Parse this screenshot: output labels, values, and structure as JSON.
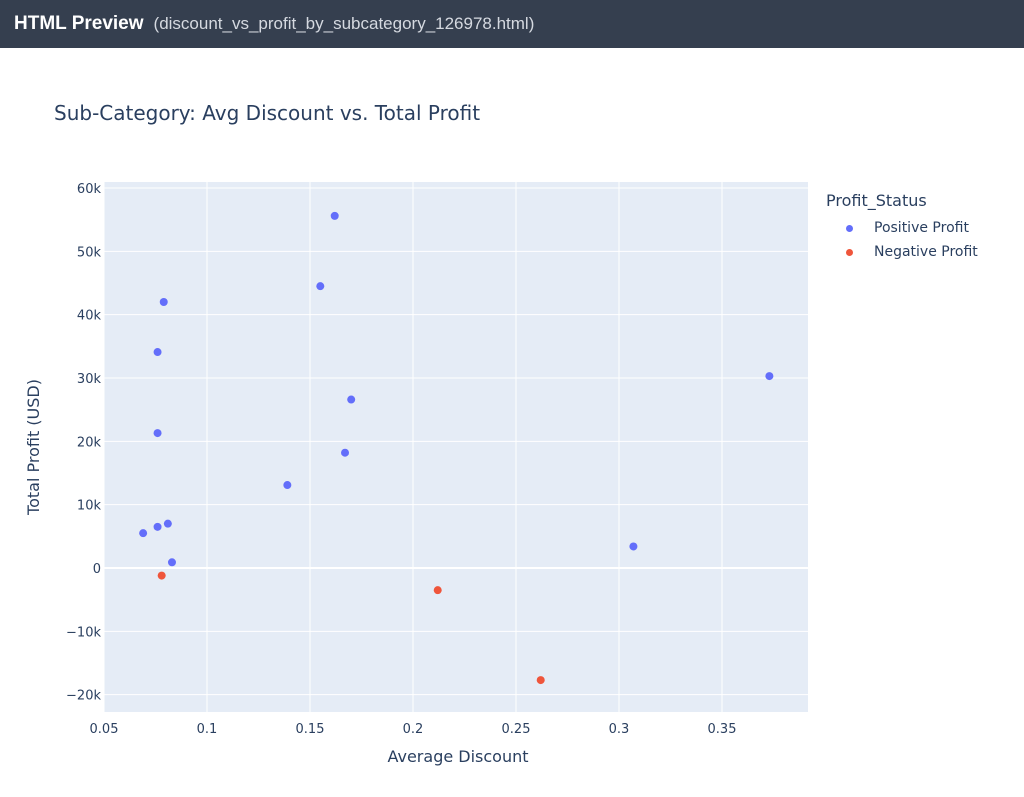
{
  "window": {
    "app_title": "HTML Preview",
    "file_name": "(discount_vs_profit_by_subcategory_126978.html)"
  },
  "chart_data": {
    "type": "scatter",
    "title": "Sub-Category: Avg Discount vs. Total Profit",
    "xlabel": "Average Discount",
    "ylabel": "Total Profit (USD)",
    "xlim": [
      0.0483,
      0.3907
    ],
    "ylim": [
      -22400,
      61000
    ],
    "x_ticks": [
      0.05,
      0.1,
      0.15,
      0.2,
      0.25,
      0.3,
      0.35
    ],
    "x_tick_labels": [
      "0.05",
      "0.1",
      "0.15",
      "0.2",
      "0.25",
      "0.3",
      "0.35"
    ],
    "y_ticks": [
      -20000,
      -10000,
      0,
      10000,
      20000,
      30000,
      40000,
      50000,
      60000
    ],
    "y_tick_labels": [
      "−20k",
      "−10k",
      "0",
      "10k",
      "20k",
      "30k",
      "40k",
      "50k",
      "60k"
    ],
    "grid": true,
    "legend": {
      "title": "Profit_Status",
      "position": "right"
    },
    "series": [
      {
        "name": "Positive Profit",
        "color": "#636efa",
        "points": [
          {
            "x": 0.162,
            "y": 55600
          },
          {
            "x": 0.155,
            "y": 44500
          },
          {
            "x": 0.079,
            "y": 42000
          },
          {
            "x": 0.076,
            "y": 34100
          },
          {
            "x": 0.373,
            "y": 30300
          },
          {
            "x": 0.17,
            "y": 26600
          },
          {
            "x": 0.076,
            "y": 21300
          },
          {
            "x": 0.167,
            "y": 18200
          },
          {
            "x": 0.139,
            "y": 13100
          },
          {
            "x": 0.081,
            "y": 7000
          },
          {
            "x": 0.076,
            "y": 6500
          },
          {
            "x": 0.069,
            "y": 5500
          },
          {
            "x": 0.307,
            "y": 3400
          },
          {
            "x": 0.083,
            "y": 900
          }
        ]
      },
      {
        "name": "Negative Profit",
        "color": "#ef553b",
        "points": [
          {
            "x": 0.078,
            "y": -1200
          },
          {
            "x": 0.212,
            "y": -3500
          },
          {
            "x": 0.262,
            "y": -17700
          }
        ]
      }
    ]
  },
  "colors": {
    "plot_bg": "#e5ecf6",
    "grid": "#ffffff",
    "text": "#2a3f5f"
  }
}
